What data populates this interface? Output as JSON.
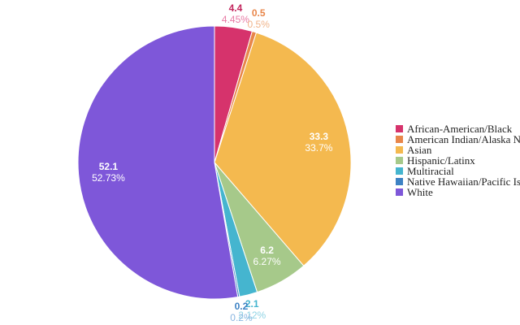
{
  "chart_data": {
    "type": "pie",
    "title": "",
    "legend_position": "right",
    "slices": [
      {
        "name": "African-American/Black",
        "value": 4.4,
        "percent_label": "4.45%",
        "color": "#d6336c",
        "value_color": "#c2255c",
        "pct_color": "#e87ba5"
      },
      {
        "name": "American Indian/Alaska Native",
        "value": 0.5,
        "percent_label": "0.5%",
        "color": "#e8864a",
        "value_color": "#e8864a",
        "pct_color": "#f0b48a"
      },
      {
        "name": "Asian",
        "value": 33.3,
        "percent_label": "33.7%",
        "color": "#f4b94f",
        "value_color": "#ffffff",
        "pct_color": "#ffffff"
      },
      {
        "name": "Hispanic/Latinx",
        "value": 6.2,
        "percent_label": "6.27%",
        "color": "#a6c98a",
        "value_color": "#ffffff",
        "pct_color": "#ffffff"
      },
      {
        "name": "Multiracial",
        "value": 2.1,
        "percent_label": "2.12%",
        "color": "#45b5cf",
        "value_color": "#45b5cf",
        "pct_color": "#8fd3e4"
      },
      {
        "name": "Native Hawaiian/Pacific Islander",
        "value": 0.2,
        "percent_label": "0.2%",
        "color": "#3d82c4",
        "value_color": "#3d82c4",
        "pct_color": "#8ab6e0"
      },
      {
        "name": "White",
        "value": 52.1,
        "percent_label": "52.73%",
        "color": "#7e57d9",
        "value_color": "#ffffff",
        "pct_color": "#ffffff"
      }
    ]
  }
}
